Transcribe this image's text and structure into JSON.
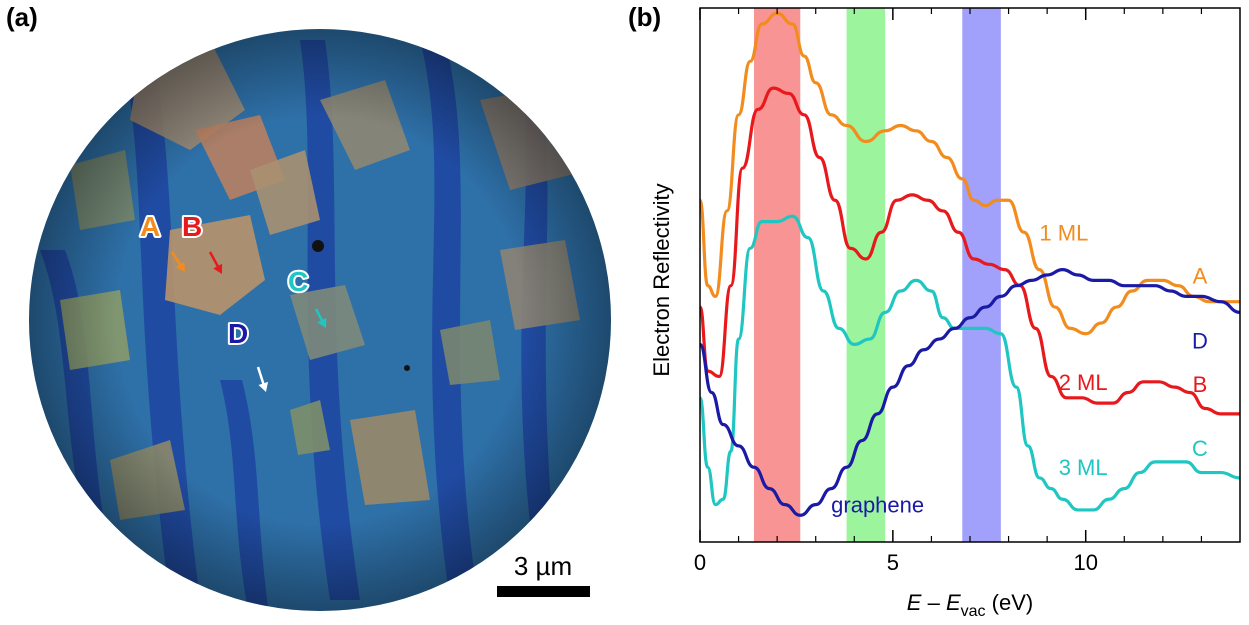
{
  "panel_a": {
    "label": "(a)",
    "scale_bar_text": "3 µm",
    "markers": [
      {
        "letter": "A",
        "color": "#f28c1e"
      },
      {
        "letter": "B",
        "color": "#e8191c"
      },
      {
        "letter": "C",
        "color": "#1fc6c2"
      },
      {
        "letter": "D",
        "color": "#1a1aa6"
      }
    ]
  },
  "panel_b": {
    "label": "(b)"
  },
  "chart_data": {
    "type": "line",
    "title": "",
    "xlabel_parts": [
      "E",
      " – ",
      "E",
      "vac",
      " (eV)"
    ],
    "ylabel": "Electron Reflectivity",
    "xlim": [
      0,
      14
    ],
    "ylim": [
      0,
      1
    ],
    "x_ticks": [
      0,
      5,
      10
    ],
    "x_minor_ticks": [
      1,
      2,
      3,
      4,
      6,
      7,
      8,
      9,
      11,
      12,
      13
    ],
    "y_ticks_shown": false,
    "grid": false,
    "bands": [
      {
        "x_range": [
          1.4,
          2.6
        ],
        "color": "#f89494"
      },
      {
        "x_range": [
          3.8,
          4.8
        ],
        "color": "#9cf59c"
      },
      {
        "x_range": [
          6.8,
          7.8
        ],
        "color": "#a1a0fa"
      }
    ],
    "series": [
      {
        "name": "1 ML",
        "endpoint_label": "A",
        "color": "#f28c1e",
        "x": [
          0,
          0.2,
          0.4,
          0.7,
          1.0,
          1.3,
          1.6,
          2.0,
          2.4,
          2.7,
          3.0,
          3.4,
          3.8,
          4.3,
          4.8,
          5.2,
          5.6,
          6.0,
          6.4,
          6.8,
          7.1,
          7.4,
          7.7,
          8.0,
          8.4,
          8.8,
          9.2,
          9.6,
          10.0,
          10.4,
          10.8,
          11.2,
          11.6,
          12.0,
          12.4,
          12.8,
          13.2,
          13.6,
          14.0
        ],
        "y": [
          0.64,
          0.48,
          0.46,
          0.62,
          0.8,
          0.9,
          0.97,
          0.99,
          0.97,
          0.91,
          0.86,
          0.8,
          0.78,
          0.75,
          0.77,
          0.78,
          0.77,
          0.75,
          0.72,
          0.68,
          0.64,
          0.63,
          0.64,
          0.64,
          0.58,
          0.51,
          0.44,
          0.4,
          0.39,
          0.41,
          0.44,
          0.47,
          0.49,
          0.49,
          0.48,
          0.46,
          0.45,
          0.45,
          0.45
        ]
      },
      {
        "name": "2 ML",
        "endpoint_label": "B",
        "color": "#e8191c",
        "x": [
          0,
          0.2,
          0.5,
          0.8,
          1.1,
          1.5,
          1.9,
          2.3,
          2.7,
          3.1,
          3.5,
          3.9,
          4.3,
          4.7,
          5.1,
          5.5,
          5.9,
          6.3,
          6.7,
          7.1,
          7.5,
          7.9,
          8.3,
          8.7,
          9.1,
          9.5,
          9.9,
          10.3,
          10.7,
          11.1,
          11.5,
          11.9,
          12.3,
          12.7,
          13.1,
          13.5,
          14.0
        ],
        "y": [
          0.44,
          0.32,
          0.31,
          0.48,
          0.7,
          0.81,
          0.85,
          0.84,
          0.8,
          0.72,
          0.64,
          0.55,
          0.53,
          0.58,
          0.64,
          0.65,
          0.64,
          0.62,
          0.58,
          0.53,
          0.52,
          0.51,
          0.48,
          0.4,
          0.31,
          0.27,
          0.27,
          0.26,
          0.26,
          0.28,
          0.3,
          0.3,
          0.29,
          0.28,
          0.25,
          0.24,
          0.24
        ]
      },
      {
        "name": "3 ML",
        "endpoint_label": "C",
        "color": "#1fc6c2",
        "x": [
          0,
          0.2,
          0.4,
          0.6,
          0.8,
          1.0,
          1.3,
          1.6,
          2.0,
          2.4,
          2.8,
          3.2,
          3.6,
          4.0,
          4.4,
          4.8,
          5.2,
          5.6,
          6.0,
          6.3,
          6.6,
          7.0,
          7.4,
          7.8,
          8.2,
          8.5,
          8.8,
          9.1,
          9.4,
          9.8,
          10.2,
          10.6,
          11.0,
          11.4,
          11.8,
          12.2,
          12.6,
          13.0,
          13.5,
          14.0
        ],
        "y": [
          0.27,
          0.14,
          0.07,
          0.08,
          0.17,
          0.38,
          0.55,
          0.6,
          0.6,
          0.61,
          0.57,
          0.47,
          0.4,
          0.37,
          0.38,
          0.43,
          0.47,
          0.49,
          0.47,
          0.42,
          0.4,
          0.4,
          0.4,
          0.39,
          0.29,
          0.18,
          0.12,
          0.1,
          0.08,
          0.06,
          0.06,
          0.08,
          0.1,
          0.13,
          0.15,
          0.15,
          0.15,
          0.13,
          0.13,
          0.12
        ]
      },
      {
        "name": "graphene",
        "endpoint_label": "D",
        "color": "#1a1aa6",
        "x": [
          0,
          0.3,
          0.6,
          1.0,
          1.4,
          1.8,
          2.2,
          2.6,
          3.0,
          3.4,
          3.8,
          4.2,
          4.6,
          5.0,
          5.4,
          5.8,
          6.2,
          6.6,
          7.0,
          7.4,
          7.8,
          8.2,
          8.6,
          9.0,
          9.4,
          9.8,
          10.2,
          10.6,
          11.0,
          11.4,
          11.8,
          12.2,
          12.6,
          13.0,
          13.5,
          14.0
        ],
        "y": [
          0.37,
          0.28,
          0.22,
          0.18,
          0.14,
          0.1,
          0.07,
          0.05,
          0.07,
          0.1,
          0.14,
          0.19,
          0.24,
          0.29,
          0.33,
          0.36,
          0.38,
          0.4,
          0.42,
          0.44,
          0.46,
          0.48,
          0.49,
          0.5,
          0.51,
          0.5,
          0.49,
          0.49,
          0.48,
          0.48,
          0.48,
          0.47,
          0.46,
          0.46,
          0.45,
          0.43
        ]
      }
    ],
    "annotations": [
      {
        "text": "1 ML",
        "color": "#f28c1e",
        "x": 8.8,
        "y": 0.58
      },
      {
        "text": "2 ML",
        "color": "#e8191c",
        "x": 9.3,
        "y": 0.3
      },
      {
        "text": "3 ML",
        "color": "#1fc6c2",
        "x": 9.3,
        "y": 0.14
      },
      {
        "text": "graphene",
        "color": "#1a1aa6",
        "x": 3.4,
        "y": 0.07
      }
    ]
  }
}
